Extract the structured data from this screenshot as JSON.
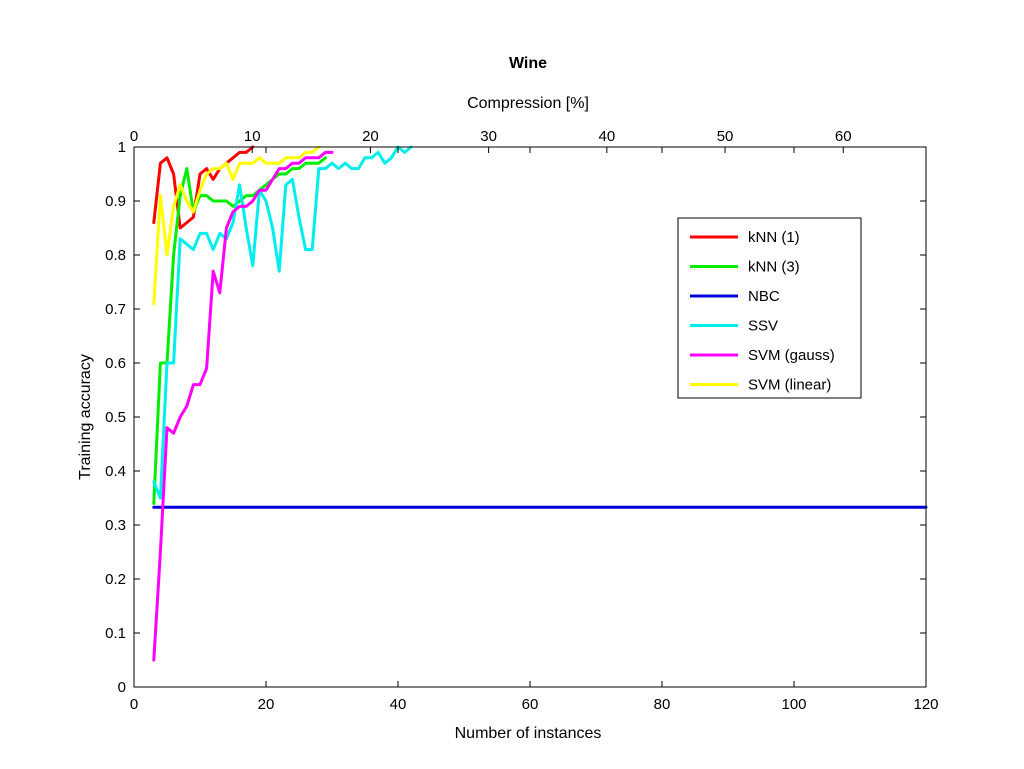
{
  "chart_data": {
    "type": "line",
    "title": "Wine",
    "xlabel": "Number of instances",
    "ylabel": "Training accuracy",
    "top_xlabel": "Compression [%]",
    "xlim": [
      0,
      120
    ],
    "ylim": [
      0,
      1
    ],
    "top_xlim": [
      0,
      67
    ],
    "x_ticks": [
      0,
      20,
      40,
      60,
      80,
      100,
      120
    ],
    "y_ticks": [
      0,
      0.1,
      0.2,
      0.3,
      0.4,
      0.5,
      0.6,
      0.7,
      0.8,
      0.9,
      1
    ],
    "top_x_ticks": [
      0,
      10,
      20,
      30,
      40,
      50,
      60
    ],
    "grid": false,
    "legend_position": "upper-right",
    "series": [
      {
        "name": "kNN (1)",
        "color": "#ff0000",
        "x": [
          3,
          4,
          5,
          6,
          7,
          8,
          9,
          10,
          11,
          12,
          13,
          14,
          15,
          16,
          17,
          18
        ],
        "y": [
          0.86,
          0.97,
          0.98,
          0.95,
          0.85,
          0.86,
          0.87,
          0.95,
          0.96,
          0.94,
          0.96,
          0.97,
          0.98,
          0.99,
          0.99,
          1.0
        ]
      },
      {
        "name": "kNN (3)",
        "color": "#00ee00",
        "x": [
          3,
          4,
          5,
          6,
          7,
          8,
          9,
          10,
          11,
          12,
          13,
          14,
          15,
          16,
          17,
          18,
          19,
          20,
          21,
          22,
          23,
          24,
          25,
          26,
          27,
          28,
          29
        ],
        "y": [
          0.34,
          0.6,
          0.6,
          0.8,
          0.91,
          0.96,
          0.88,
          0.91,
          0.91,
          0.9,
          0.9,
          0.9,
          0.89,
          0.9,
          0.91,
          0.91,
          0.92,
          0.93,
          0.94,
          0.95,
          0.95,
          0.96,
          0.96,
          0.97,
          0.97,
          0.97,
          0.98
        ]
      },
      {
        "name": "NBC",
        "color": "#0000dd",
        "x": [
          3,
          120
        ],
        "y": [
          0.333,
          0.333
        ]
      },
      {
        "name": "SSV",
        "color": "#00eeee",
        "x": [
          3,
          4,
          5,
          6,
          7,
          8,
          9,
          10,
          11,
          12,
          13,
          14,
          15,
          16,
          17,
          18,
          19,
          20,
          21,
          22,
          23,
          24,
          25,
          26,
          27,
          28,
          29,
          30,
          31,
          32,
          33,
          34,
          35,
          36,
          37,
          38,
          39,
          40,
          41,
          42
        ],
        "y": [
          0.38,
          0.35,
          0.6,
          0.6,
          0.83,
          0.82,
          0.81,
          0.84,
          0.84,
          0.81,
          0.84,
          0.83,
          0.86,
          0.93,
          0.85,
          0.78,
          0.92,
          0.9,
          0.85,
          0.77,
          0.93,
          0.94,
          0.87,
          0.81,
          0.81,
          0.96,
          0.96,
          0.97,
          0.96,
          0.97,
          0.96,
          0.96,
          0.98,
          0.98,
          0.99,
          0.97,
          0.98,
          1.0,
          0.99,
          1.0
        ]
      },
      {
        "name": "SVM (gauss)",
        "color": "#ff00ff",
        "x": [
          3,
          4,
          5,
          6,
          7,
          8,
          9,
          10,
          11,
          12,
          13,
          14,
          15,
          16,
          17,
          18,
          19,
          20,
          21,
          22,
          23,
          24,
          25,
          26,
          27,
          28,
          29,
          30
        ],
        "y": [
          0.05,
          0.25,
          0.48,
          0.47,
          0.5,
          0.52,
          0.56,
          0.56,
          0.59,
          0.77,
          0.73,
          0.85,
          0.88,
          0.89,
          0.89,
          0.9,
          0.92,
          0.92,
          0.94,
          0.96,
          0.96,
          0.97,
          0.97,
          0.98,
          0.98,
          0.98,
          0.99,
          0.99
        ]
      },
      {
        "name": "SVM (linear)",
        "color": "#ffff00",
        "x": [
          3,
          4,
          5,
          6,
          7,
          8,
          9,
          10,
          11,
          12,
          13,
          14,
          15,
          16,
          17,
          18,
          19,
          20,
          21,
          22,
          23,
          24,
          25,
          26,
          27,
          28
        ],
        "y": [
          0.71,
          0.91,
          0.8,
          0.89,
          0.93,
          0.9,
          0.88,
          0.92,
          0.95,
          0.96,
          0.96,
          0.97,
          0.94,
          0.97,
          0.97,
          0.97,
          0.98,
          0.97,
          0.97,
          0.97,
          0.98,
          0.98,
          0.98,
          0.99,
          0.99,
          1.0
        ]
      }
    ]
  }
}
